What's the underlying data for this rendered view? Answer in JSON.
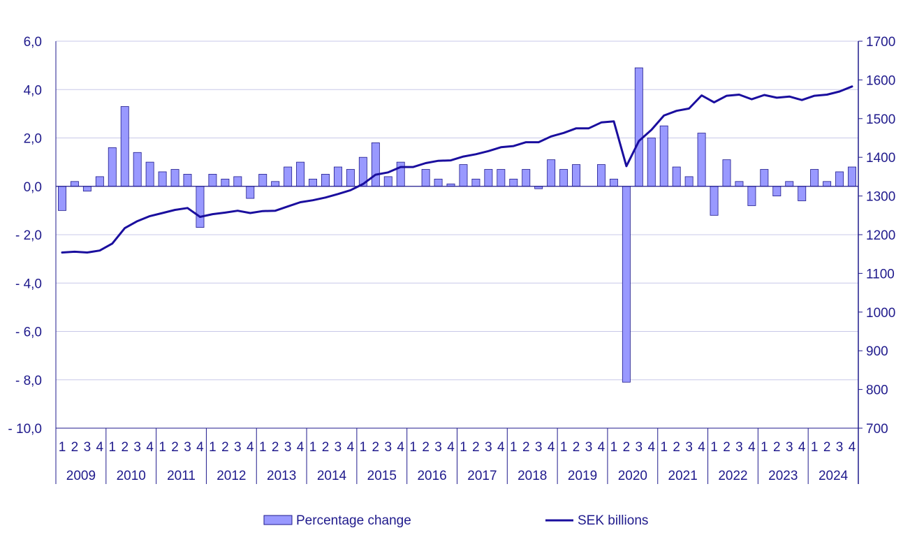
{
  "chart_data": {
    "type": "bar+line",
    "title": "",
    "quarter_labels": [
      "1",
      "2",
      "3",
      "4"
    ],
    "years": [
      "2009",
      "2010",
      "2011",
      "2012",
      "2013",
      "2014",
      "2015",
      "2016",
      "2017",
      "2018",
      "2019",
      "2020",
      "2021",
      "2022",
      "2023",
      "2024"
    ],
    "left_axis": {
      "ylim": [
        -10,
        6
      ],
      "ticks": [
        6,
        4,
        2,
        0,
        -2,
        -4,
        -6,
        -8,
        -10
      ],
      "tick_labels": [
        "6,0",
        "4,0",
        "2,0",
        "0,0",
        "- 2,0",
        "- 4,0",
        "- 6,0",
        "- 8,0",
        "- 10,0"
      ]
    },
    "right_axis": {
      "ylim": [
        700,
        1700
      ],
      "ticks": [
        1700,
        1600,
        1500,
        1400,
        1300,
        1200,
        1100,
        1000,
        900,
        800,
        700
      ],
      "tick_labels": [
        "1700",
        "1600",
        "1500",
        "1400",
        "1300",
        "1200",
        "1100",
        "1000",
        "900",
        "800",
        "700"
      ]
    },
    "series": [
      {
        "name": "Percentage change",
        "axis": "left",
        "kind": "bar",
        "color": "#9999ff",
        "edge_color": "#1f1a8c",
        "values": [
          -1.0,
          0.2,
          -0.2,
          0.4,
          1.6,
          3.3,
          1.4,
          1.0,
          0.6,
          0.7,
          0.5,
          -1.7,
          0.5,
          0.3,
          0.4,
          -0.5,
          0.5,
          0.2,
          0.8,
          1.0,
          0.3,
          0.5,
          0.8,
          0.7,
          1.2,
          1.8,
          0.4,
          1.0,
          0.0,
          0.7,
          0.3,
          0.1,
          0.9,
          0.3,
          0.7,
          0.7,
          0.3,
          0.7,
          -0.1,
          1.1,
          0.7,
          0.9,
          0.0,
          0.9,
          0.3,
          -8.1,
          4.9,
          2.0,
          2.5,
          0.8,
          0.4,
          2.2,
          -1.2,
          1.1,
          0.2,
          -0.8,
          0.7,
          -0.4,
          0.2,
          -0.6,
          0.7,
          0.2,
          0.6,
          0.8
        ]
      },
      {
        "name": "SEK billions",
        "axis": "right",
        "kind": "line",
        "color": "#1a0e9e",
        "values": [
          1154,
          1156,
          1154,
          1159,
          1177,
          1217,
          1235,
          1248,
          1256,
          1264,
          1269,
          1246,
          1253,
          1257,
          1262,
          1256,
          1261,
          1262,
          1273,
          1284,
          1289,
          1296,
          1305,
          1315,
          1331,
          1355,
          1361,
          1375,
          1375,
          1385,
          1391,
          1392,
          1402,
          1408,
          1416,
          1426,
          1429,
          1439,
          1439,
          1454,
          1463,
          1475,
          1475,
          1490,
          1493,
          1377,
          1442,
          1471,
          1508,
          1520,
          1526,
          1560,
          1542,
          1559,
          1562,
          1550,
          1561,
          1554,
          1557,
          1548,
          1559,
          1562,
          1570,
          1583
        ]
      }
    ],
    "legend": {
      "position": "bottom",
      "items": [
        "Percentage change",
        "SEK billions"
      ]
    }
  }
}
